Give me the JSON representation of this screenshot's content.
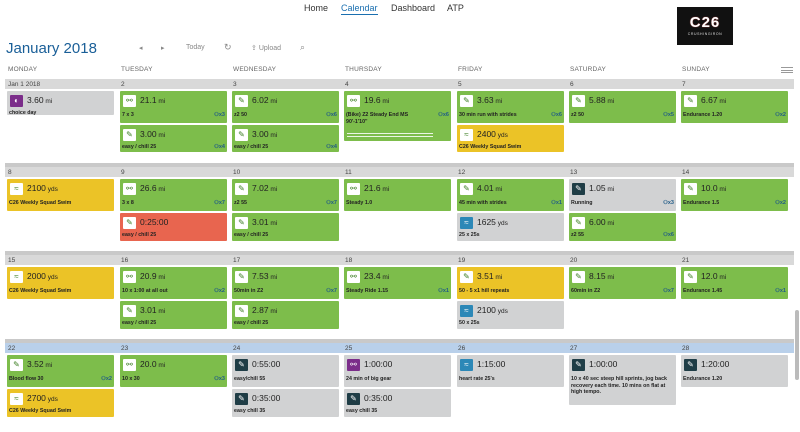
{
  "nav": {
    "home": "Home",
    "calendar": "Calendar",
    "dashboard": "Dashboard",
    "atp": "ATP"
  },
  "logo": {
    "big": "C26",
    "small": "CRUSHINGIRON"
  },
  "header": {
    "month": "January",
    "year": "2018",
    "prev": "◂",
    "next": "▸",
    "today": "Today",
    "refresh": "↻",
    "upload": "Upload",
    "search": "⌕"
  },
  "days": [
    "MONDAY",
    "TUESDAY",
    "WEDNESDAY",
    "THURSDAY",
    "FRIDAY",
    "SATURDAY",
    "SUNDAY"
  ],
  "weeks": [
    {
      "nums": [
        "Jan 1 2018",
        "2",
        "3",
        "4",
        "5",
        "6",
        "7"
      ],
      "cards": [
        {
          "col": 0,
          "y": 91,
          "h": 24,
          "color": "gray",
          "icon": "purple",
          "glyph": "◐",
          "icon_name": "strength-icon",
          "dist": "3.60",
          "unit": "mi",
          "desc": "choice day",
          "badge": ""
        },
        {
          "col": 1,
          "y": 91,
          "h": 32,
          "color": "green",
          "icon": "white",
          "glyph": "⚯",
          "icon_name": "bike-icon",
          "dist": "21.1",
          "unit": "mi",
          "desc": "7 x 3",
          "badge": "x3"
        },
        {
          "col": 1,
          "y": 125,
          "h": 27,
          "color": "green",
          "icon": "white",
          "glyph": "✎",
          "icon_name": "run-icon",
          "dist": "3.00",
          "unit": "mi",
          "desc": "easy / chill 25",
          "badge": "x4"
        },
        {
          "col": 2,
          "y": 91,
          "h": 32,
          "color": "green",
          "icon": "white",
          "glyph": "✎",
          "icon_name": "run-icon",
          "dist": "6.02",
          "unit": "mi",
          "desc": "z2 50",
          "badge": "x6"
        },
        {
          "col": 2,
          "y": 125,
          "h": 27,
          "color": "green",
          "icon": "white",
          "glyph": "✎",
          "icon_name": "run-icon",
          "dist": "3.00",
          "unit": "mi",
          "desc": "easy / chill 25",
          "badge": "x4"
        },
        {
          "col": 3,
          "y": 91,
          "h": 50,
          "color": "green",
          "icon": "white",
          "glyph": "⚯",
          "icon_name": "bike-icon",
          "dist": "19.6",
          "unit": "mi",
          "desc": "(Bike) Z2 Steady End MS",
          "desc2": "90'-1'10\"",
          "badge": "x6",
          "track": true
        },
        {
          "col": 4,
          "y": 91,
          "h": 32,
          "color": "green",
          "icon": "white",
          "glyph": "✎",
          "icon_name": "run-icon",
          "dist": "3.63",
          "unit": "mi",
          "desc": "30 min run with strides",
          "badge": "x6"
        },
        {
          "col": 4,
          "y": 125,
          "h": 27,
          "color": "yellow",
          "icon": "white",
          "glyph": "≈",
          "icon_name": "swim-icon",
          "dist": "2400",
          "unit": "yds",
          "desc": "C26 Weekly Squad Swim",
          "badge": ""
        },
        {
          "col": 5,
          "y": 91,
          "h": 32,
          "color": "green",
          "icon": "white",
          "glyph": "✎",
          "icon_name": "run-icon",
          "dist": "5.88",
          "unit": "mi",
          "desc": "z2 50",
          "badge": "x5"
        },
        {
          "col": 6,
          "y": 91,
          "h": 32,
          "color": "green",
          "icon": "white",
          "glyph": "✎",
          "icon_name": "run-icon",
          "dist": "6.67",
          "unit": "mi",
          "desc": "Endurance 1.20",
          "badge": "x2"
        }
      ]
    },
    {
      "nums": [
        "8",
        "9",
        "10",
        "11",
        "12",
        "13",
        "14"
      ],
      "cards": [
        {
          "col": 0,
          "y": 179,
          "h": 32,
          "color": "yellow",
          "icon": "white",
          "glyph": "≈",
          "icon_name": "swim-icon",
          "dist": "2100",
          "unit": "yds",
          "desc": "C26 Weekly Squad Swim",
          "badge": ""
        },
        {
          "col": 1,
          "y": 179,
          "h": 32,
          "color": "green",
          "icon": "white",
          "glyph": "⚯",
          "icon_name": "bike-icon",
          "dist": "26.6",
          "unit": "mi",
          "desc": "3 x 8",
          "badge": "x7"
        },
        {
          "col": 1,
          "y": 213,
          "h": 28,
          "color": "red",
          "icon": "white",
          "glyph": "✎",
          "icon_name": "run-icon",
          "dist": "0:25:00",
          "unit": "",
          "desc": "easy / chill 25",
          "badge": ""
        },
        {
          "col": 2,
          "y": 179,
          "h": 32,
          "color": "green",
          "icon": "white",
          "glyph": "✎",
          "icon_name": "run-icon",
          "dist": "7.02",
          "unit": "mi",
          "desc": "z2 55",
          "badge": "x7"
        },
        {
          "col": 2,
          "y": 213,
          "h": 28,
          "color": "green",
          "icon": "white",
          "glyph": "✎",
          "icon_name": "run-icon",
          "dist": "3.01",
          "unit": "mi",
          "desc": "easy / chill 25",
          "badge": ""
        },
        {
          "col": 3,
          "y": 179,
          "h": 32,
          "color": "green",
          "icon": "white",
          "glyph": "⚯",
          "icon_name": "bike-icon",
          "dist": "21.6",
          "unit": "mi",
          "desc": "Steady 1.0",
          "badge": ""
        },
        {
          "col": 4,
          "y": 179,
          "h": 32,
          "color": "green",
          "icon": "white",
          "glyph": "✎",
          "icon_name": "run-icon",
          "dist": "4.01",
          "unit": "mi",
          "desc": "45 min with strides",
          "badge": "x1"
        },
        {
          "col": 4,
          "y": 213,
          "h": 28,
          "color": "gray",
          "icon": "teal",
          "glyph": "≈",
          "icon_name": "swim-icon",
          "dist": "1625",
          "unit": "yds",
          "desc": "25 x 25s",
          "badge": ""
        },
        {
          "col": 5,
          "y": 179,
          "h": 32,
          "color": "gray",
          "icon": "dark",
          "glyph": "✎",
          "icon_name": "run-icon",
          "dist": "1.05",
          "unit": "mi",
          "desc": "Running",
          "badge": "x3"
        },
        {
          "col": 5,
          "y": 213,
          "h": 28,
          "color": "green",
          "icon": "white",
          "glyph": "✎",
          "icon_name": "run-icon",
          "dist": "6.00",
          "unit": "mi",
          "desc": "z2 55",
          "badge": "x6"
        },
        {
          "col": 6,
          "y": 179,
          "h": 32,
          "color": "green",
          "icon": "white",
          "glyph": "✎",
          "icon_name": "run-icon",
          "dist": "10.0",
          "unit": "mi",
          "desc": "Endurance 1.5",
          "badge": "x2"
        }
      ]
    },
    {
      "nums": [
        "15",
        "16",
        "17",
        "18",
        "19",
        "20",
        "21"
      ],
      "cards": [
        {
          "col": 0,
          "y": 267,
          "h": 32,
          "color": "yellow",
          "icon": "white",
          "glyph": "≈",
          "icon_name": "swim-icon",
          "dist": "2000",
          "unit": "yds",
          "desc": "C26 Weekly Squad Swim",
          "badge": ""
        },
        {
          "col": 1,
          "y": 267,
          "h": 32,
          "color": "green",
          "icon": "white",
          "glyph": "⚯",
          "icon_name": "bike-icon",
          "dist": "20.9",
          "unit": "mi",
          "desc": "10 x 1:00 at all out",
          "badge": "x2"
        },
        {
          "col": 1,
          "y": 301,
          "h": 28,
          "color": "green",
          "icon": "white",
          "glyph": "✎",
          "icon_name": "run-icon",
          "dist": "3.01",
          "unit": "mi",
          "desc": "easy / chill 25",
          "badge": ""
        },
        {
          "col": 2,
          "y": 267,
          "h": 32,
          "color": "green",
          "icon": "white",
          "glyph": "✎",
          "icon_name": "run-icon",
          "dist": "7.53",
          "unit": "mi",
          "desc": "50min in Z2",
          "badge": "x7"
        },
        {
          "col": 2,
          "y": 301,
          "h": 28,
          "color": "green",
          "icon": "white",
          "glyph": "✎",
          "icon_name": "run-icon",
          "dist": "2.87",
          "unit": "mi",
          "desc": "easy / chill 25",
          "badge": ""
        },
        {
          "col": 3,
          "y": 267,
          "h": 32,
          "color": "green",
          "icon": "white",
          "glyph": "⚯",
          "icon_name": "bike-icon",
          "dist": "23.4",
          "unit": "mi",
          "desc": "Steady Ride 1.15",
          "badge": "x1"
        },
        {
          "col": 4,
          "y": 267,
          "h": 32,
          "color": "yellow",
          "icon": "white",
          "glyph": "✎",
          "icon_name": "run-icon",
          "dist": "3.51",
          "unit": "mi",
          "desc": "50 - 5 x1 hill repeats",
          "badge": ""
        },
        {
          "col": 4,
          "y": 301,
          "h": 28,
          "color": "gray",
          "icon": "teal",
          "glyph": "≈",
          "icon_name": "swim-icon",
          "dist": "2100",
          "unit": "yds",
          "desc": "50 x 25s",
          "badge": ""
        },
        {
          "col": 5,
          "y": 267,
          "h": 32,
          "color": "green",
          "icon": "white",
          "glyph": "✎",
          "icon_name": "run-icon",
          "dist": "8.15",
          "unit": "mi",
          "desc": "60min in Z2",
          "badge": "x7"
        },
        {
          "col": 6,
          "y": 267,
          "h": 32,
          "color": "green",
          "icon": "white",
          "glyph": "✎",
          "icon_name": "run-icon",
          "dist": "12.0",
          "unit": "mi",
          "desc": "Endurance 1.45",
          "badge": "x1"
        }
      ]
    },
    {
      "nums": [
        "22",
        "23",
        "24",
        "25",
        "26",
        "27",
        "28"
      ],
      "cards": [
        {
          "col": 0,
          "y": 355,
          "h": 32,
          "color": "green",
          "icon": "white",
          "glyph": "✎",
          "icon_name": "run-icon",
          "dist": "3.52",
          "unit": "mi",
          "desc": "Blood flow 30",
          "badge": "x2"
        },
        {
          "col": 0,
          "y": 389,
          "h": 28,
          "color": "yellow",
          "icon": "white",
          "glyph": "≈",
          "icon_name": "swim-icon",
          "dist": "2700",
          "unit": "yds",
          "desc": "C26 Weekly Squad Swim",
          "badge": ""
        },
        {
          "col": 1,
          "y": 355,
          "h": 32,
          "color": "green",
          "icon": "white",
          "glyph": "⚯",
          "icon_name": "bike-icon",
          "dist": "20.0",
          "unit": "mi",
          "desc": "10 x 30",
          "badge": "x3"
        },
        {
          "col": 2,
          "y": 355,
          "h": 32,
          "color": "gray",
          "icon": "dark",
          "glyph": "✎",
          "icon_name": "run-icon",
          "dist": "0:55:00",
          "unit": "",
          "desc": "easy/chill 55",
          "badge": ""
        },
        {
          "col": 2,
          "y": 389,
          "h": 28,
          "color": "gray",
          "icon": "dark",
          "glyph": "✎",
          "icon_name": "run-icon",
          "dist": "0:35:00",
          "unit": "",
          "desc": "easy chill 35",
          "badge": ""
        },
        {
          "col": 3,
          "y": 355,
          "h": 32,
          "color": "gray",
          "icon": "purple",
          "glyph": "⚯",
          "icon_name": "bike-icon",
          "dist": "1:00:00",
          "unit": "",
          "desc": "24 min of big gear",
          "badge": ""
        },
        {
          "col": 3,
          "y": 389,
          "h": 28,
          "color": "gray",
          "icon": "dark",
          "glyph": "✎",
          "icon_name": "run-icon",
          "dist": "0:35:00",
          "unit": "",
          "desc": "easy chill 35",
          "badge": ""
        },
        {
          "col": 4,
          "y": 355,
          "h": 32,
          "color": "gray",
          "icon": "teal",
          "glyph": "≈",
          "icon_name": "swim-icon",
          "dist": "1:15:00",
          "unit": "",
          "desc": "heart rate 25's",
          "badge": ""
        },
        {
          "col": 5,
          "y": 355,
          "h": 50,
          "color": "gray",
          "icon": "dark",
          "glyph": "✎",
          "icon_name": "run-icon",
          "dist": "1:00:00",
          "unit": "",
          "desc": "10 x 40 sec steep hill sprints, jog back recovery each time. 10 mins on flat at high tempo.",
          "badge": "",
          "wrap": true
        },
        {
          "col": 6,
          "y": 355,
          "h": 32,
          "color": "gray",
          "icon": "dark",
          "glyph": "✎",
          "icon_name": "run-icon",
          "dist": "1:20:00",
          "unit": "",
          "desc": "Endurance 1.20",
          "badge": ""
        }
      ]
    }
  ]
}
